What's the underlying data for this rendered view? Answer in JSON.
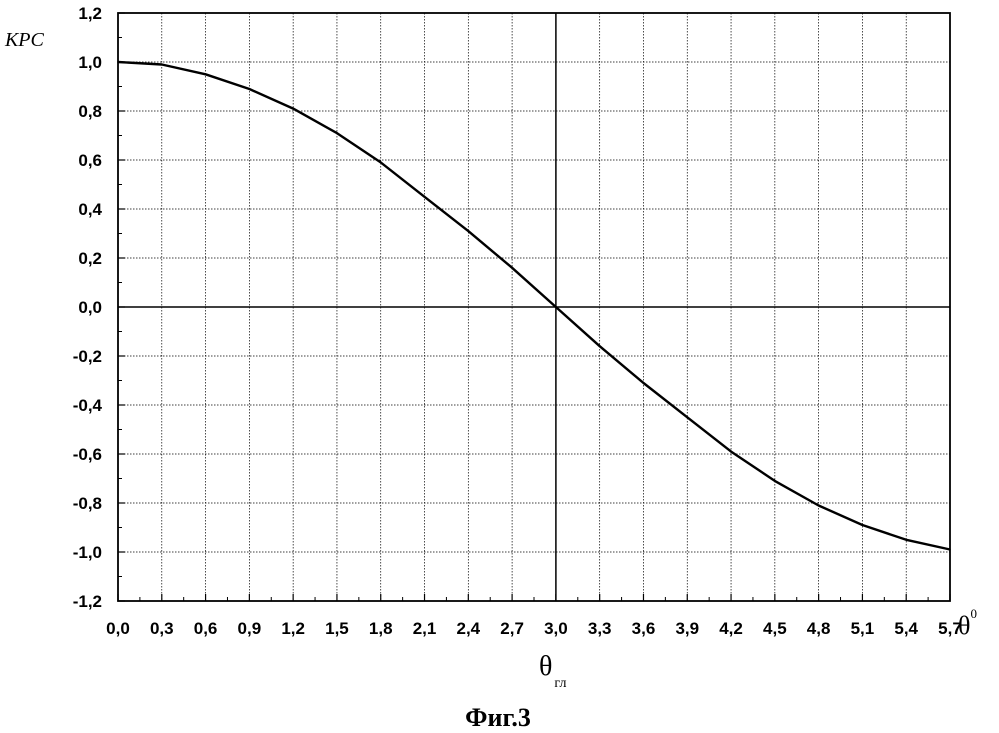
{
  "chart_data": {
    "type": "line",
    "ylabel": "КРС",
    "xunit": {
      "symbol": "θ",
      "superscript": "0"
    },
    "xlabel": {
      "symbol": "θ",
      "subscript": "гл"
    },
    "caption": "Фиг.3",
    "xlim": [
      0.0,
      5.7
    ],
    "ylim": [
      -1.2,
      1.2
    ],
    "grid": true,
    "xticks": [
      "0,0",
      "0,3",
      "0,6",
      "0,9",
      "1,2",
      "1,5",
      "1,8",
      "2,1",
      "2,4",
      "2,7",
      "3,0",
      "3,3",
      "3,6",
      "3,9",
      "4,2",
      "4,5",
      "4,8",
      "5,1",
      "5,4",
      "5,7"
    ],
    "yticks": [
      "1,2",
      "1,0",
      "0,8",
      "0,6",
      "0,4",
      "0,2",
      "0,0",
      "-0,2",
      "-0,4",
      "-0,6",
      "-0,8",
      "-1,0",
      "-1,2"
    ],
    "series": [
      {
        "x": [
          0.0,
          0.3,
          0.6,
          0.9,
          1.2,
          1.5,
          1.8,
          2.1,
          2.4,
          2.7,
          3.0,
          3.3,
          3.6,
          3.9,
          4.2,
          4.5,
          4.8,
          5.1,
          5.4,
          5.7
        ],
        "values": [
          1.0,
          0.99,
          0.95,
          0.89,
          0.81,
          0.71,
          0.59,
          0.45,
          0.31,
          0.16,
          0.0,
          -0.16,
          -0.31,
          -0.45,
          -0.59,
          -0.71,
          -0.81,
          -0.89,
          -0.95,
          -0.99
        ]
      }
    ]
  }
}
